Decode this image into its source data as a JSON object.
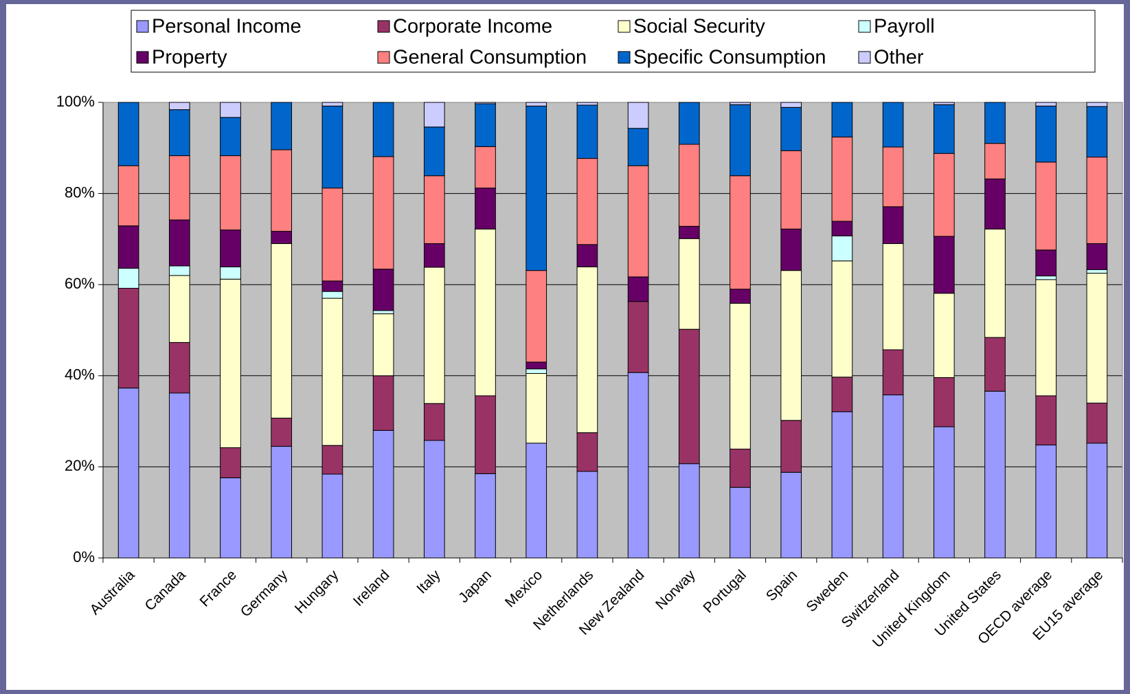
{
  "chart_data": {
    "type": "stacked_bar",
    "categories": [
      "Australia",
      "Canada",
      "France",
      "Germany",
      "Hungary",
      "Ireland",
      "Italy",
      "Japan",
      "Mexico",
      "Netherlands",
      "New Zealand",
      "Norway",
      "Portugal",
      "Spain",
      "Sweden",
      "Switzerland",
      "United Kingdom",
      "United States",
      "OECD average",
      "EU15 average"
    ],
    "series": [
      {
        "name": "Personal Income",
        "color": "#9999ff",
        "values": [
          37.3,
          36.2,
          17.6,
          24.5,
          18.4,
          28.0,
          25.8,
          18.5,
          25.2,
          19.0,
          40.7,
          20.7,
          15.5,
          18.8,
          32.1,
          35.8,
          28.8,
          36.6,
          24.8,
          25.2
        ]
      },
      {
        "name": "Corporate Income",
        "color": "#993366",
        "values": [
          21.9,
          11.1,
          6.6,
          6.2,
          6.3,
          12.0,
          8.1,
          17.1,
          0,
          8.5,
          15.6,
          29.5,
          8.4,
          11.4,
          7.6,
          9.9,
          10.8,
          11.8,
          10.8,
          8.8
        ]
      },
      {
        "name": "Social Security",
        "color": "#ffffcc",
        "values": [
          0,
          14.7,
          37.0,
          38.3,
          32.3,
          13.6,
          29.9,
          36.6,
          15.3,
          36.4,
          0,
          19.9,
          32.0,
          32.9,
          25.5,
          23.3,
          18.5,
          23.8,
          25.5,
          28.5
        ]
      },
      {
        "name": "Payroll",
        "color": "#ccffff",
        "values": [
          4.4,
          2.1,
          2.7,
          0,
          1.5,
          0.7,
          0,
          0,
          1.0,
          0,
          0,
          0,
          0,
          0,
          5.5,
          0,
          0,
          0,
          0.8,
          0.8
        ]
      },
      {
        "name": "Property",
        "color": "#660066",
        "values": [
          9.3,
          10.1,
          8.1,
          2.7,
          2.3,
          9.1,
          5.2,
          9.0,
          1.5,
          4.9,
          5.4,
          2.7,
          3.1,
          9.1,
          3.2,
          8.1,
          12.5,
          11.0,
          5.7,
          5.7
        ]
      },
      {
        "name": "General Consumption",
        "color": "#ff8080",
        "values": [
          13.2,
          14.1,
          16.3,
          17.9,
          20.4,
          24.7,
          14.9,
          9.1,
          20.1,
          18.9,
          24.4,
          18.0,
          24.9,
          17.2,
          18.5,
          13.1,
          18.2,
          7.8,
          19.3,
          19.0
        ]
      },
      {
        "name": "Specific Consumption",
        "color": "#0066cc",
        "values": [
          13.9,
          10.1,
          8.4,
          10.4,
          18.0,
          11.9,
          10.7,
          9.4,
          36.1,
          11.7,
          8.2,
          9.2,
          15.6,
          9.5,
          7.6,
          9.8,
          10.7,
          9.0,
          12.3,
          11.1
        ]
      },
      {
        "name": "Other",
        "color": "#ccccff",
        "values": [
          0,
          1.6,
          3.3,
          0,
          0.8,
          0,
          5.4,
          0.3,
          0.8,
          0.6,
          5.7,
          0,
          0.5,
          1.1,
          0,
          0,
          0.5,
          0,
          0.8,
          0.9
        ]
      }
    ],
    "ylim": [
      0,
      100
    ],
    "yticks": [
      {
        "value": 0,
        "label": "0%"
      },
      {
        "value": 20,
        "label": "20%"
      },
      {
        "value": 40,
        "label": "40%"
      },
      {
        "value": 60,
        "label": "60%"
      },
      {
        "value": 80,
        "label": "80%"
      },
      {
        "value": 100,
        "label": "100%"
      }
    ],
    "grid": true,
    "plot_background": "#c0c0c0"
  }
}
